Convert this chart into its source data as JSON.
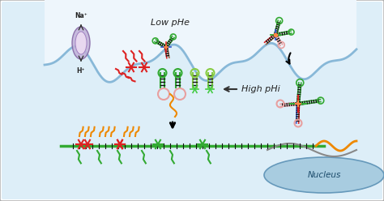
{
  "bg_white": "#ffffff",
  "bg_cell_light": "#ddeef8",
  "bg_cell_inner": "#c8e0f0",
  "bg_extracell": "#eef6fc",
  "nucleus_color": "#a8cce0",
  "nucleus_edge": "#6699bb",
  "channel_body": "#c0b0d8",
  "channel_inner": "#e8d8f0",
  "label_low_phe": "Low pHe",
  "label_high_phi": "High pHi",
  "label_nucleus": "Nucleus",
  "label_na": "Na⁺",
  "label_h": "H⁺",
  "text_color": "#222222",
  "red_color": "#dd2222",
  "green_color": "#33aa33",
  "green_light": "#88cc44",
  "orange_color": "#ee8800",
  "blue_color": "#3355cc",
  "purple_color": "#8844aa",
  "dark_color": "#222222",
  "pink_color": "#e8a0a0",
  "gray_color": "#888888",
  "brown_color": "#996644",
  "figsize": [
    4.74,
    2.48
  ],
  "dpi": 100
}
